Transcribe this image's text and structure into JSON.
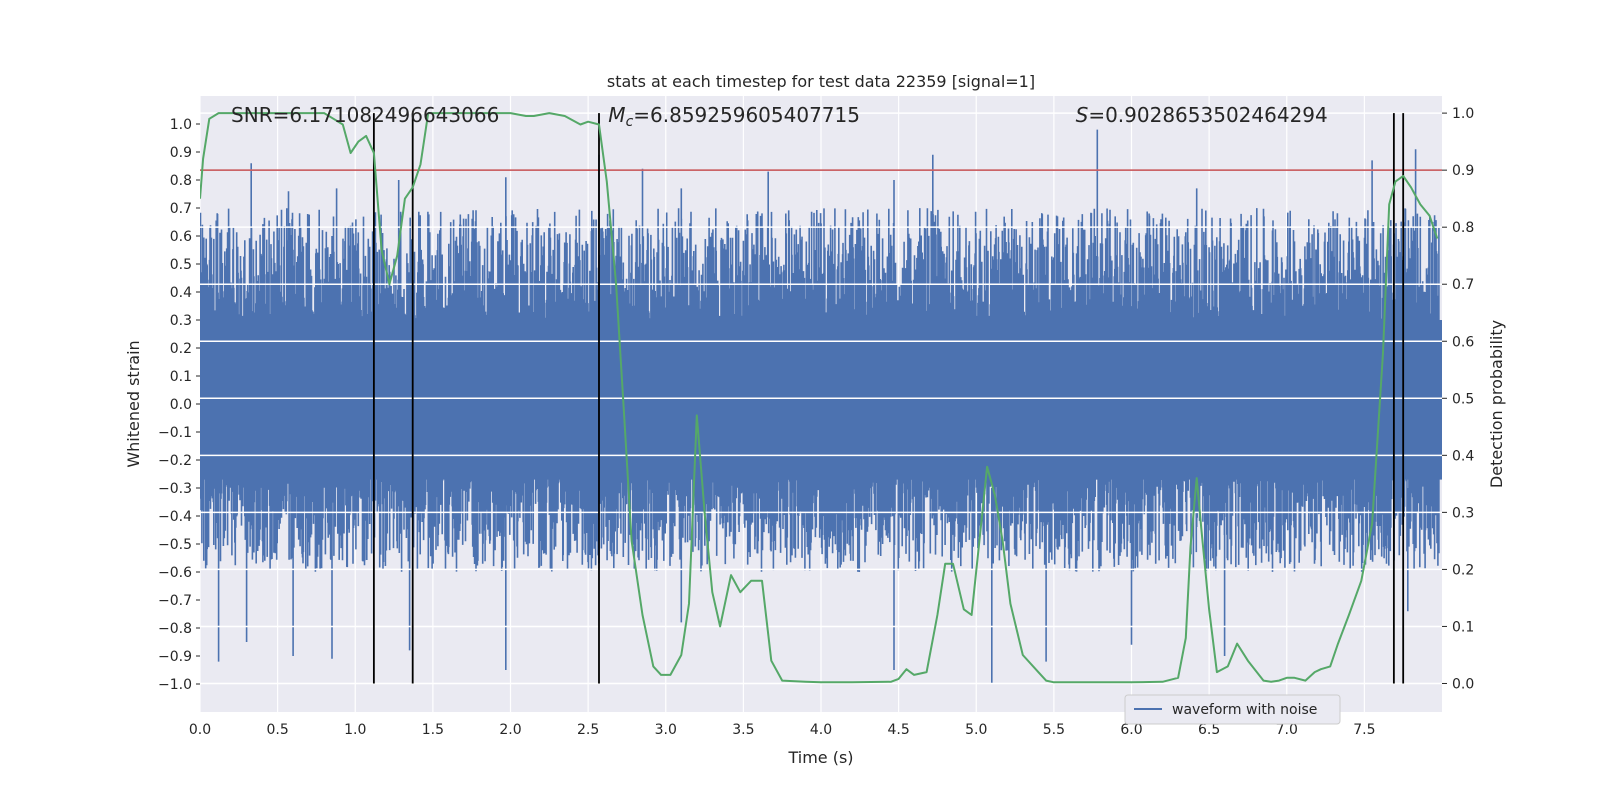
{
  "chart_data": {
    "type": "line",
    "title": "stats at each timestep for test data 22359 [signal=1]",
    "xlabel": "Time (s)",
    "ylabel": "Whitened strain",
    "y2label": "Detection probability",
    "xlim": [
      0.0,
      8.0
    ],
    "ylim": [
      -1.1,
      1.1
    ],
    "y2lim": [
      -0.05,
      1.03
    ],
    "x_ticks": [
      "0.0",
      "0.5",
      "1.0",
      "1.5",
      "2.0",
      "2.5",
      "3.0",
      "3.5",
      "4.0",
      "4.5",
      "5.0",
      "5.5",
      "6.0",
      "6.5",
      "7.0",
      "7.5"
    ],
    "y_ticks": [
      "1.0",
      "0.9",
      "0.8",
      "0.7",
      "0.6",
      "0.5",
      "0.4",
      "0.3",
      "0.2",
      "0.1",
      "0.0",
      "-0.1",
      "-0.2",
      "-0.3",
      "-0.4",
      "-0.5",
      "-0.6",
      "-0.7",
      "-0.8",
      "-0.9",
      "-1.0"
    ],
    "y_tick_values": [
      1.0,
      0.9,
      0.8,
      0.7,
      0.6,
      0.5,
      0.4,
      0.3,
      0.2,
      0.1,
      0.0,
      -0.1,
      -0.2,
      -0.3,
      -0.4,
      -0.5,
      -0.6,
      -0.7,
      -0.8,
      -0.9,
      -1.0
    ],
    "y2_ticks": [
      "1.0",
      "0.9",
      "0.8",
      "0.7",
      "0.6",
      "0.5",
      "0.4",
      "0.3",
      "0.2",
      "0.1",
      "0.0"
    ],
    "y2_tick_values": [
      1.0,
      0.9,
      0.8,
      0.7,
      0.6,
      0.5,
      0.4,
      0.3,
      0.2,
      0.1,
      0.0
    ],
    "grid": true,
    "legend_position": "lower-right",
    "series": [
      {
        "name": "waveform with noise",
        "axis": "left",
        "color": "#4c72b0",
        "kind": "dense-noise",
        "typical_max": 0.65,
        "typical_min": -0.55,
        "peaks": [
          [
            0.33,
            0.86
          ],
          [
            0.57,
            0.76
          ],
          [
            0.88,
            0.77
          ],
          [
            1.28,
            0.8
          ],
          [
            1.97,
            0.81
          ],
          [
            2.57,
            0.89
          ],
          [
            2.85,
            0.84
          ],
          [
            3.1,
            0.77
          ],
          [
            3.66,
            0.83
          ],
          [
            4.47,
            0.8
          ],
          [
            4.72,
            0.89
          ],
          [
            5.78,
            0.98
          ],
          [
            6.42,
            0.77
          ],
          [
            7.55,
            0.87
          ],
          [
            7.83,
            0.91
          ]
        ],
        "troughs": [
          [
            0.12,
            -0.92
          ],
          [
            0.3,
            -0.85
          ],
          [
            0.6,
            -0.9
          ],
          [
            0.85,
            -0.91
          ],
          [
            1.35,
            -0.88
          ],
          [
            1.97,
            -0.95
          ],
          [
            3.1,
            -0.78
          ],
          [
            4.47,
            -0.95
          ],
          [
            5.1,
            -1.0
          ],
          [
            5.45,
            -0.92
          ],
          [
            6.0,
            -0.86
          ],
          [
            6.6,
            -0.9
          ],
          [
            7.78,
            -0.74
          ]
        ]
      },
      {
        "name": "Detection probability",
        "axis": "right",
        "color": "#55a868",
        "x": [
          0.0,
          0.02,
          0.06,
          0.12,
          0.2,
          0.3,
          0.5,
          0.7,
          0.8,
          0.86,
          0.92,
          0.97,
          1.02,
          1.07,
          1.12,
          1.17,
          1.22,
          1.27,
          1.32,
          1.37,
          1.42,
          1.47,
          1.5,
          1.6,
          1.8,
          2.0,
          2.1,
          2.15,
          2.25,
          2.35,
          2.45,
          2.5,
          2.57,
          2.62,
          2.68,
          2.73,
          2.78,
          2.85,
          2.92,
          2.97,
          3.03,
          3.1,
          3.15,
          3.2,
          3.25,
          3.3,
          3.35,
          3.42,
          3.48,
          3.55,
          3.62,
          3.68,
          3.75,
          3.9,
          4.0,
          4.2,
          4.45,
          4.5,
          4.55,
          4.6,
          4.68,
          4.75,
          4.8,
          4.85,
          4.92,
          4.97,
          5.02,
          5.07,
          5.12,
          5.17,
          5.22,
          5.3,
          5.4,
          5.45,
          5.5,
          5.55,
          6.0,
          6.2,
          6.3,
          6.35,
          6.38,
          6.42,
          6.45,
          6.5,
          6.55,
          6.62,
          6.68,
          6.75,
          6.85,
          6.9,
          6.95,
          7.0,
          7.05,
          7.12,
          7.18,
          7.22,
          7.28,
          7.33,
          7.4,
          7.48,
          7.55,
          7.62,
          7.66,
          7.7,
          7.75,
          7.8,
          7.86,
          7.92,
          7.97
        ],
        "y": [
          0.85,
          0.92,
          0.99,
          1.0,
          1.0,
          1.0,
          1.0,
          1.0,
          1.0,
          0.99,
          0.98,
          0.93,
          0.95,
          0.96,
          0.93,
          0.76,
          0.7,
          0.75,
          0.85,
          0.87,
          0.91,
          1.0,
          1.0,
          1.0,
          1.0,
          1.0,
          0.995,
          0.995,
          1.0,
          0.995,
          0.98,
          0.985,
          0.98,
          0.88,
          0.7,
          0.48,
          0.25,
          0.12,
          0.03,
          0.015,
          0.015,
          0.05,
          0.14,
          0.47,
          0.3,
          0.16,
          0.1,
          0.19,
          0.16,
          0.18,
          0.18,
          0.04,
          0.005,
          0.003,
          0.002,
          0.002,
          0.003,
          0.008,
          0.025,
          0.015,
          0.02,
          0.12,
          0.21,
          0.21,
          0.13,
          0.12,
          0.25,
          0.38,
          0.33,
          0.25,
          0.14,
          0.05,
          0.02,
          0.005,
          0.002,
          0.002,
          0.002,
          0.003,
          0.01,
          0.08,
          0.24,
          0.36,
          0.27,
          0.13,
          0.02,
          0.03,
          0.07,
          0.04,
          0.005,
          0.003,
          0.005,
          0.01,
          0.01,
          0.005,
          0.02,
          0.025,
          0.03,
          0.07,
          0.12,
          0.18,
          0.28,
          0.58,
          0.84,
          0.88,
          0.89,
          0.87,
          0.84,
          0.82,
          0.78
        ]
      }
    ],
    "threshold_line": {
      "value": 0.9,
      "axis": "right",
      "color": "#c44e52"
    },
    "vertical_lines": [
      1.12,
      1.37,
      2.57,
      7.69,
      7.75
    ],
    "annotations": [
      {
        "text": "SNR=6.171082496643066",
        "x": 0.2
      },
      {
        "text": "=6.859259605407715",
        "x": 2.63,
        "math_prefix": "M",
        "math_sub": "c"
      },
      {
        "text": "=0.9028653502464294",
        "x": 5.64,
        "math_prefix": "S"
      }
    ]
  }
}
